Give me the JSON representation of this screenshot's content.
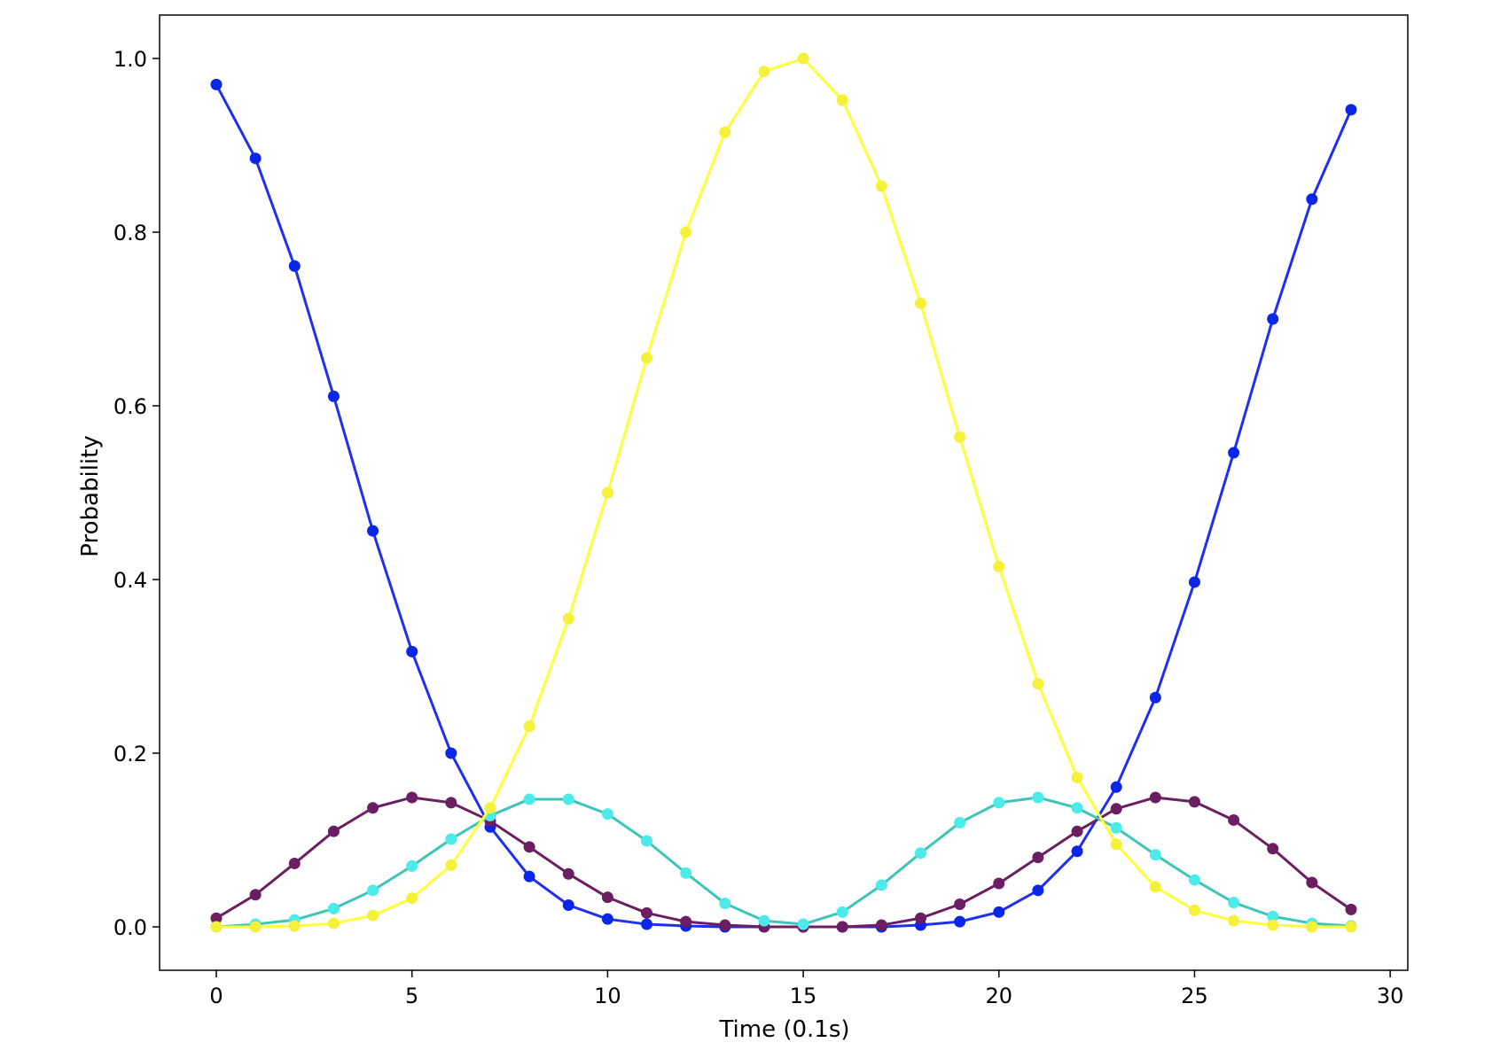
{
  "chart_data": {
    "type": "line",
    "title": "",
    "xlabel": "Time (0.1s)",
    "ylabel": "Probability",
    "xlim": [
      -1.45,
      30.45
    ],
    "ylim": [
      -0.05,
      1.05
    ],
    "xticks": [
      0,
      5,
      10,
      15,
      20,
      25,
      30
    ],
    "xtick_labels": [
      "0",
      "5",
      "10",
      "15",
      "20",
      "25",
      "30"
    ],
    "yticks": [
      0.0,
      0.2,
      0.4,
      0.6,
      0.8,
      1.0
    ],
    "ytick_labels": [
      "0.0",
      "0.2",
      "0.4",
      "0.6",
      "0.8",
      "1.0"
    ],
    "grid": false,
    "legend": "none",
    "x": [
      0,
      1,
      2,
      3,
      4,
      5,
      6,
      7,
      8,
      9,
      10,
      11,
      12,
      13,
      14,
      15,
      16,
      17,
      18,
      19,
      20,
      21,
      22,
      23,
      24,
      25,
      26,
      27,
      28,
      29
    ],
    "series": [
      {
        "color": "#1f2ff0",
        "marker_color": "#0a26e8",
        "values": [
          0.97,
          0.885,
          0.761,
          0.611,
          0.456,
          0.317,
          0.2,
          0.115,
          0.058,
          0.025,
          0.009,
          0.003,
          0.001,
          0.0,
          0.0,
          0.0,
          0.0,
          0.0,
          0.002,
          0.006,
          0.017,
          0.042,
          0.087,
          0.161,
          0.264,
          0.397,
          0.546,
          0.7,
          0.838,
          0.941
        ]
      },
      {
        "color": "#6b1f62",
        "marker_color": "#6b1f62",
        "values": [
          0.01,
          0.037,
          0.073,
          0.11,
          0.137,
          0.149,
          0.143,
          0.122,
          0.092,
          0.061,
          0.034,
          0.016,
          0.006,
          0.002,
          0.0,
          0.0,
          0.0,
          0.002,
          0.01,
          0.026,
          0.05,
          0.08,
          0.11,
          0.136,
          0.149,
          0.144,
          0.123,
          0.09,
          0.051,
          0.02
        ]
      },
      {
        "color": "#3ec4b8",
        "marker_color": "#4deaea",
        "values": [
          0.0,
          0.003,
          0.008,
          0.021,
          0.042,
          0.07,
          0.101,
          0.128,
          0.147,
          0.147,
          0.13,
          0.099,
          0.062,
          0.027,
          0.007,
          0.003,
          0.017,
          0.048,
          0.085,
          0.12,
          0.143,
          0.149,
          0.137,
          0.114,
          0.083,
          0.054,
          0.028,
          0.012,
          0.004,
          0.001
        ]
      },
      {
        "color": "#ffff3a",
        "marker_color": "#f5f03a",
        "values": [
          0.0,
          0.0,
          0.001,
          0.004,
          0.013,
          0.033,
          0.071,
          0.137,
          0.231,
          0.355,
          0.5,
          0.655,
          0.8,
          0.915,
          0.985,
          1.0,
          0.952,
          0.853,
          0.718,
          0.564,
          0.415,
          0.28,
          0.172,
          0.095,
          0.046,
          0.019,
          0.007,
          0.002,
          0.0,
          0.0
        ]
      }
    ]
  }
}
